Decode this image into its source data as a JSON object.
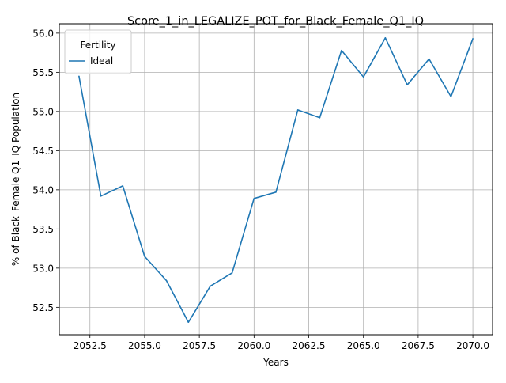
{
  "chart_data": {
    "type": "line",
    "title": "Score_1_in_LEGALIZE_POT_for_Black_Female_Q1_IQ",
    "xlabel": "Years",
    "ylabel": "% of Black_Female Q1_IQ Population",
    "xlim": [
      2051.1,
      2070.9
    ],
    "ylim": [
      52.15,
      56.12
    ],
    "x_ticks": [
      2052.5,
      2055.0,
      2057.5,
      2060.0,
      2062.5,
      2065.0,
      2067.5,
      2070.0
    ],
    "x_tick_labels": [
      "2052.5",
      "2055.0",
      "2057.5",
      "2060.0",
      "2062.5",
      "2065.0",
      "2067.5",
      "2070.0"
    ],
    "y_ticks": [
      52.5,
      53.0,
      53.5,
      54.0,
      54.5,
      55.0,
      55.5,
      56.0
    ],
    "y_tick_labels": [
      "52.5",
      "53.0",
      "53.5",
      "54.0",
      "54.5",
      "55.0",
      "55.5",
      "56.0"
    ],
    "grid": true,
    "legend": {
      "title": "Fertility",
      "placement": "upper-left"
    },
    "series": [
      {
        "name": "Ideal",
        "color": "#1f77b4",
        "x": [
          2052,
          2053,
          2054,
          2055,
          2056,
          2057,
          2058,
          2059,
          2060,
          2061,
          2062,
          2063,
          2064,
          2065,
          2066,
          2067,
          2068,
          2069,
          2070
        ],
        "y": [
          55.45,
          53.92,
          54.05,
          53.15,
          52.84,
          52.31,
          52.77,
          52.94,
          53.89,
          53.97,
          55.02,
          54.92,
          55.78,
          55.44,
          55.94,
          55.34,
          55.67,
          55.19,
          55.93
        ]
      }
    ]
  }
}
